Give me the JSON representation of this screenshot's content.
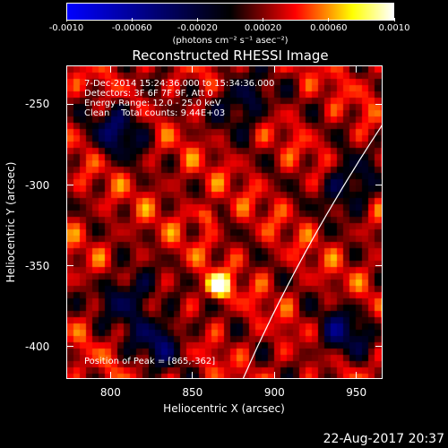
{
  "colorbar": {
    "tick_labels": [
      "-0.0010",
      "-0.00060",
      "-0.00020",
      "0.00020",
      "0.00060",
      "0.0010"
    ],
    "unit_label": "(photons cm⁻² s⁻¹ asec⁻²)",
    "colors": [
      "#0000ff",
      "#000000",
      "#ff0000",
      "#ffff00",
      "#ffffff"
    ]
  },
  "chart_data": {
    "type": "heatmap",
    "title": "Reconstructed RHESSI Image",
    "xlabel": "Heliocentric X (arcsec)",
    "ylabel": "Heliocentric Y (arcsec)",
    "xlim": [
      773,
      966
    ],
    "ylim": [
      -420,
      -226
    ],
    "x_ticks": [
      800,
      850,
      900,
      950
    ],
    "y_ticks": [
      -250,
      -300,
      -350,
      -400
    ],
    "peak": [
      865,
      -362
    ],
    "secondary_source": [
      858,
      -318
    ],
    "grid": false
  },
  "info_lines": [
    "7-Dec-2014 15:24:36.000 to 15:34:36.000",
    "Detectors: 3F 6F 7F 9F, Att 0",
    "Energy Range: 12.0 - 25.0 keV",
    "Clean    Total counts: 9.44E+03"
  ],
  "peak_text": "Position of Peak = [865,-362]",
  "timestamp": "22-Aug-2017 20:37"
}
